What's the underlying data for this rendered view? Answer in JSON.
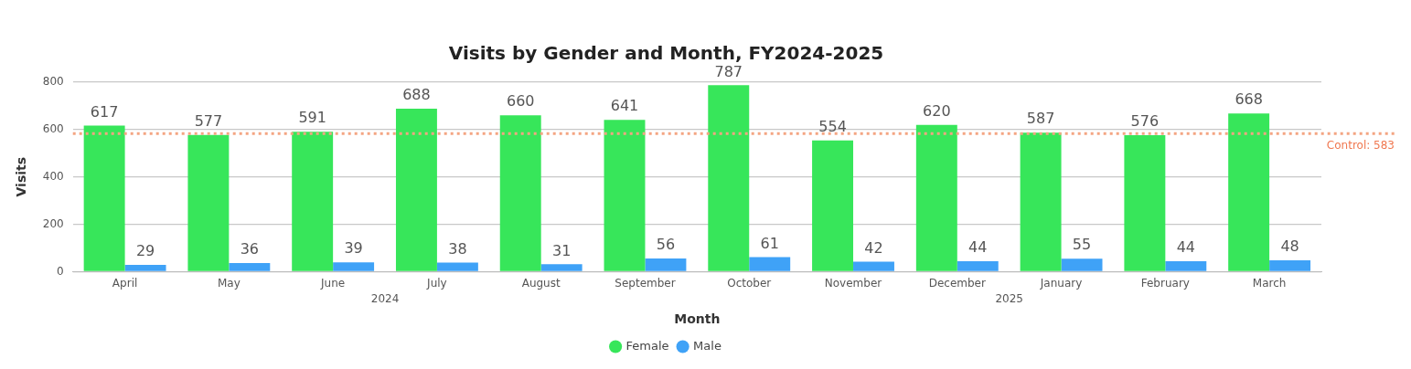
{
  "chart_data": {
    "type": "bar",
    "title": "Visits by Gender and Month, FY2024-2025",
    "xlabel": "Month",
    "ylabel": "Visits",
    "categories": [
      "April",
      "May",
      "June",
      "July",
      "August",
      "September",
      "October",
      "November",
      "December",
      "January",
      "February",
      "March"
    ],
    "series": [
      {
        "name": "Female",
        "color": "#37e65a",
        "values": [
          617,
          577,
          591,
          688,
          660,
          641,
          787,
          554,
          620,
          587,
          576,
          668
        ]
      },
      {
        "name": "Male",
        "color": "#3fa2f7",
        "values": [
          29,
          36,
          39,
          38,
          31,
          56,
          61,
          42,
          44,
          55,
          44,
          48
        ]
      }
    ],
    "ylim": [
      0,
      800
    ],
    "yticks": [
      0,
      200,
      400,
      600,
      800
    ],
    "grid": "y",
    "legend": "bottom",
    "data_labels": true,
    "ref_lines": [
      {
        "axis": "y",
        "value": 583,
        "label": "Control: 583",
        "color": "#f4a582",
        "line_style": "dotted"
      }
    ],
    "annotations": [
      "2024",
      "2025"
    ]
  }
}
